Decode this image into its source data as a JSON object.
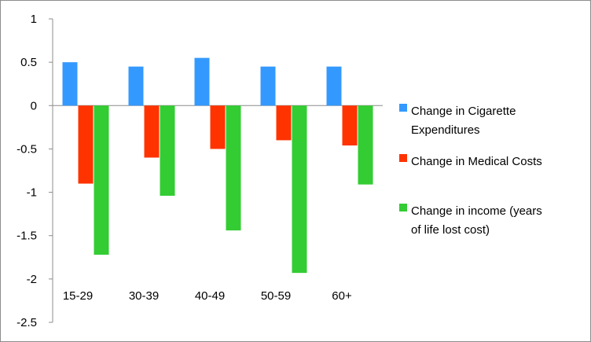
{
  "chart_data": {
    "type": "bar",
    "categories": [
      "15-29",
      "30-39",
      "40-49",
      "50-59",
      "60+"
    ],
    "series": [
      {
        "name": "Change in Cigarette Expenditures",
        "legend_lines": [
          "Change in Cigarette",
          "Expenditures"
        ],
        "color": "#3399ff",
        "values": [
          0.5,
          0.45,
          0.55,
          0.45,
          0.45
        ]
      },
      {
        "name": "Change in Medical Costs",
        "legend_lines": [
          "Change in Medical Costs"
        ],
        "color": "#ff3300",
        "values": [
          -0.9,
          -0.6,
          -0.5,
          -0.4,
          -0.46
        ]
      },
      {
        "name": "Change in income (years of life lost cost)",
        "legend_lines": [
          "Change in income (years",
          "of life lost cost)"
        ],
        "color": "#33cc33",
        "values": [
          -1.72,
          -1.04,
          -1.44,
          -1.93,
          -0.91
        ]
      }
    ],
    "yticks": [
      "1",
      "0.5",
      "0",
      "-0.5",
      "-1",
      "-1.5",
      "-2",
      "-2.5"
    ],
    "ylim": [
      -2.5,
      1
    ],
    "title": "",
    "xlabel": "",
    "ylabel": "",
    "legend_position": "right",
    "grid": false
  }
}
